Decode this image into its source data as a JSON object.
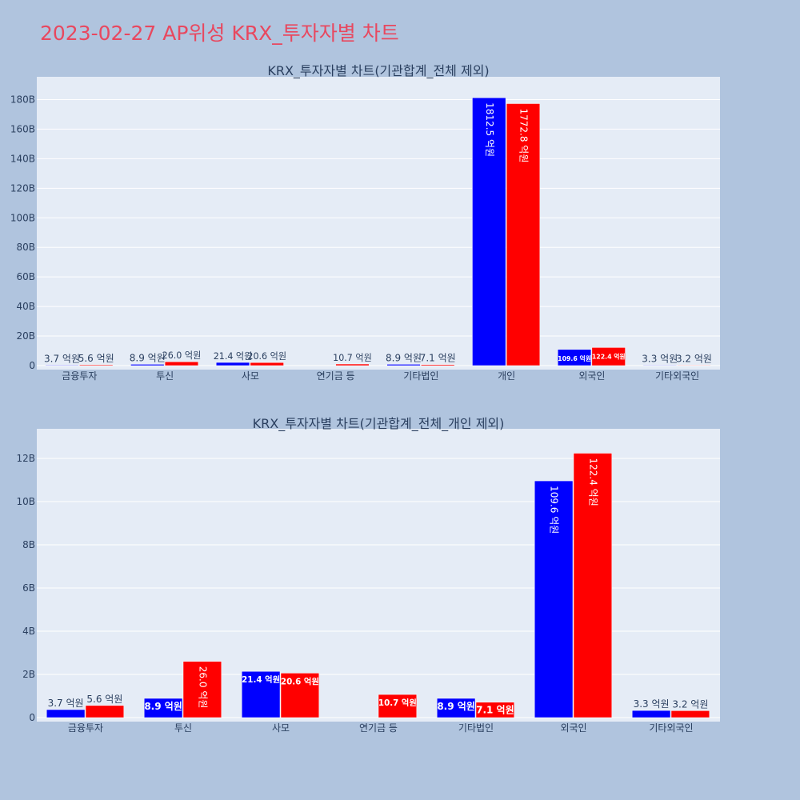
{
  "page": {
    "title": "2023-02-27 AP위성 KRX_투자자별 차트",
    "background": "#b0c4de",
    "title_color": "#e8485f"
  },
  "chart_data": [
    {
      "type": "bar",
      "title": "KRX_투자자별 차트(기관합계_전체 제외)",
      "categories": [
        "금융투자",
        "투신",
        "사모",
        "연기금 등",
        "기타법인",
        "개인",
        "외국인",
        "기타외국인"
      ],
      "series": [
        {
          "color": "#0000ff",
          "values": [
            370000000,
            890000000,
            2140000000,
            0,
            890000000,
            181250000000,
            10960000000,
            330000000
          ],
          "labels": [
            "3.7 억원",
            "8.9 억원",
            "21.4 억원",
            "",
            "8.9 억원",
            "1812.5 억원",
            "109.6 억원",
            "3.3 억원"
          ]
        },
        {
          "color": "#ff0000",
          "values": [
            560000000,
            2600000000,
            2060000000,
            1070000000,
            710000000,
            177280000000,
            12240000000,
            320000000
          ],
          "labels": [
            "5.6 억원",
            "26.0 억원",
            "20.6 억원",
            "10.7 억원",
            "7.1 억원",
            "1772.8 억원",
            "122.4 억원",
            "3.2 억원"
          ]
        }
      ],
      "ylim": [
        0,
        190000000000
      ],
      "yticks": [
        {
          "value": 0,
          "label": "0"
        },
        {
          "value": 20000000000,
          "label": "20B"
        },
        {
          "value": 40000000000,
          "label": "40B"
        },
        {
          "value": 60000000000,
          "label": "60B"
        },
        {
          "value": 80000000000,
          "label": "80B"
        },
        {
          "value": 100000000000,
          "label": "100B"
        },
        {
          "value": 120000000000,
          "label": "120B"
        },
        {
          "value": 140000000000,
          "label": "140B"
        },
        {
          "value": 160000000000,
          "label": "160B"
        },
        {
          "value": 180000000000,
          "label": "180B"
        }
      ],
      "grid": true,
      "legend": "none"
    },
    {
      "type": "bar",
      "title": "KRX_투자자별 차트(기관합계_전체_개인 제외)",
      "categories": [
        "금융투자",
        "투신",
        "사모",
        "연기금 등",
        "기타법인",
        "외국인",
        "기타외국인"
      ],
      "series": [
        {
          "color": "#0000ff",
          "values": [
            370000000,
            890000000,
            2140000000,
            0,
            890000000,
            10960000000,
            330000000
          ],
          "labels": [
            "3.7 억원",
            "8.9 억원",
            "21.4 억원",
            "",
            "8.9 억원",
            "109.6 억원",
            "3.3 억원"
          ]
        },
        {
          "color": "#ff0000",
          "values": [
            560000000,
            2600000000,
            2060000000,
            1070000000,
            710000000,
            12240000000,
            320000000
          ],
          "labels": [
            "5.6 억원",
            "26.0 억원",
            "20.6 억원",
            "10.7 억원",
            "7.1 억원",
            "122.4 억원",
            "3.2 억원"
          ]
        }
      ],
      "ylim": [
        0,
        13000000000
      ],
      "yticks": [
        {
          "value": 0,
          "label": "0"
        },
        {
          "value": 2000000000,
          "label": "2B"
        },
        {
          "value": 4000000000,
          "label": "4B"
        },
        {
          "value": 6000000000,
          "label": "6B"
        },
        {
          "value": 8000000000,
          "label": "8B"
        },
        {
          "value": 10000000000,
          "label": "10B"
        },
        {
          "value": 12000000000,
          "label": "12B"
        }
      ],
      "grid": true,
      "legend": "none"
    }
  ]
}
